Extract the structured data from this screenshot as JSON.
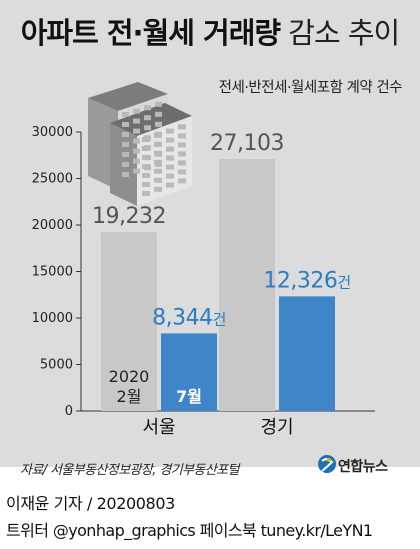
{
  "title": {
    "strong": "아파트 전·월세 거래량",
    "light": "감소 추이"
  },
  "subtitle": "전세·반전세·월세포함 계약 건수",
  "chart_data": {
    "type": "bar",
    "categories": [
      "서울",
      "경기"
    ],
    "series": [
      {
        "name": "2020 2월",
        "values": [
          19232,
          27103
        ],
        "color": "#c8c8c8"
      },
      {
        "name": "7월",
        "values": [
          8344,
          12326
        ],
        "color": "#3f86c8"
      }
    ],
    "value_labels": [
      [
        "19,232",
        "27,103"
      ],
      [
        "8,344",
        "12,326"
      ]
    ],
    "unit_suffix": "건",
    "in_bar_labels": {
      "feb_line1": "2020",
      "feb_line2": "2월",
      "jul": "7월"
    },
    "yticks": [
      "0",
      "5000",
      "10000",
      "15000",
      "20000",
      "25000",
      "30000"
    ],
    "ylim": [
      0,
      30000
    ],
    "grid": false,
    "colors": {
      "feb": "#c8c8c8",
      "jul": "#3f86c8",
      "jul_label": "#2b7cc4",
      "feb_label": "#555555"
    }
  },
  "source": "자료/ 서울부동산정보광장, 경기부동산포털",
  "logo": {
    "text": "연합뉴스",
    "icon": "yonhap-logo-icon"
  },
  "byline": "이재윤 기자 / 20200803",
  "social": "트위터 @yonhap_graphics  페이스북 tuney.kr/LeYN1"
}
